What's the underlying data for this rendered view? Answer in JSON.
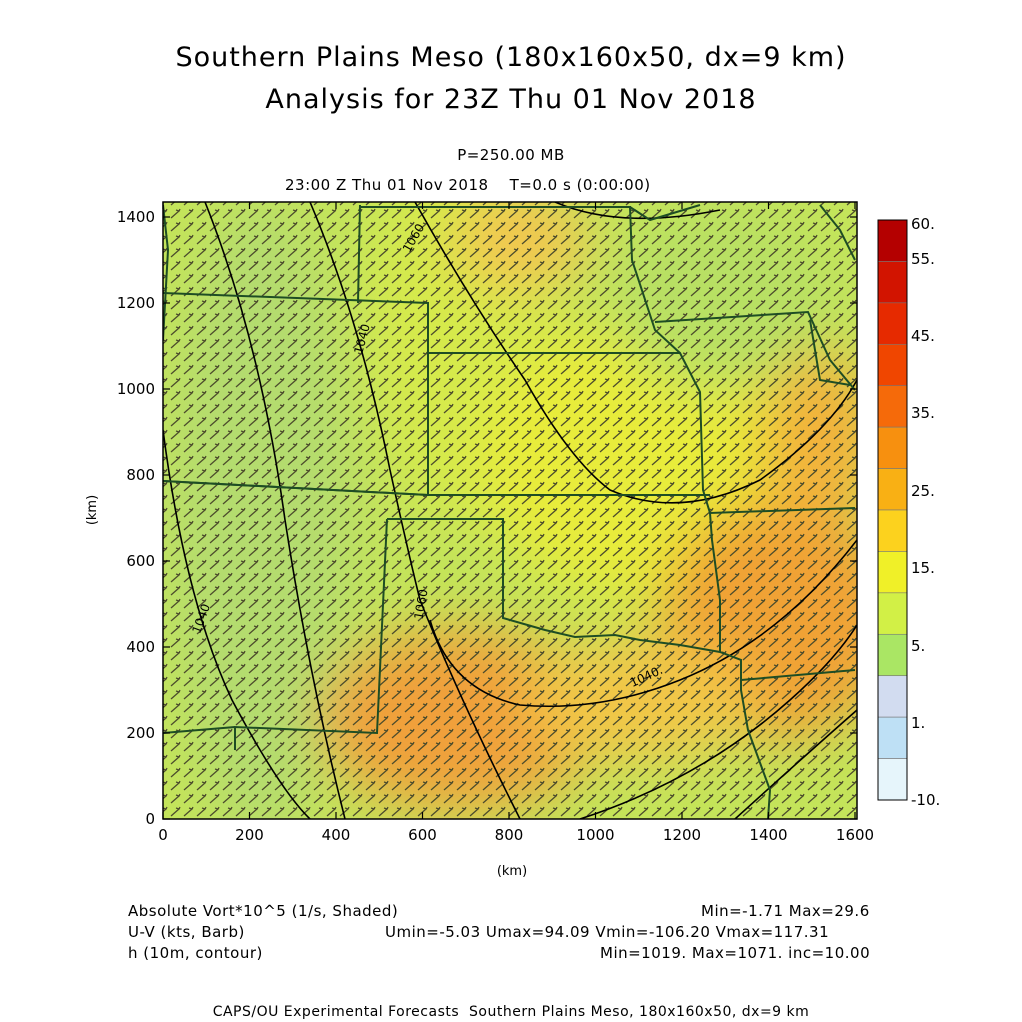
{
  "header": {
    "title_line1": "Southern Plains Meso (180x160x50, dx=9 km)",
    "title_line2": "Analysis for 23Z Thu 01 Nov 2018",
    "level": "P=250.00 MB",
    "valid_time": "23:00 Z Thu 01 Nov 2018    T=0.0 s (0:00:00)"
  },
  "axes": {
    "x_label": "(km)",
    "y_label": "(km)",
    "x_ticks": [
      "0",
      "200",
      "400",
      "600",
      "800",
      "1000",
      "1200",
      "1400",
      "1600"
    ],
    "y_ticks": [
      "0",
      "200",
      "400",
      "600",
      "800",
      "1000",
      "1200",
      "1400"
    ]
  },
  "colorbar": {
    "labels": [
      "60.",
      "55.",
      "45.",
      "35.",
      "25.",
      "15.",
      "5.",
      "1.",
      "-10."
    ],
    "colors": [
      "#b40000",
      "#d21400",
      "#e62a00",
      "#f04600",
      "#f56a0a",
      "#f7900f",
      "#f9b014",
      "#fcd21e",
      "#f0f028",
      "#d2f046",
      "#aae664",
      "#d2dcf0",
      "#bee0f5",
      "#e6f5fb"
    ]
  },
  "contours": {
    "labels": [
      "1040",
      "1040",
      "1060",
      "1060",
      "1040."
    ]
  },
  "legend": {
    "vort_label": "Absolute Vort*10^5 (1/s, Shaded)",
    "vort_stats": "Min=-1.71 Max=29.6",
    "wind_label": "U-V (kts, Barb)",
    "wind_stats": "Umin=-5.03 Umax=94.09 Vmin=-106.20 Vmax=117.31",
    "height_label": "h (10m, contour)",
    "height_stats": "Min=1019. Max=1071. inc=10.00"
  },
  "footer": {
    "credit": "CAPS/OU Experimental Forecasts  Southern Plains Meso, 180x160x50, dx=9 km"
  },
  "style": {
    "state_border_color": "#1e4d24",
    "contour_color": "#000000",
    "barb_color": "#555533"
  }
}
